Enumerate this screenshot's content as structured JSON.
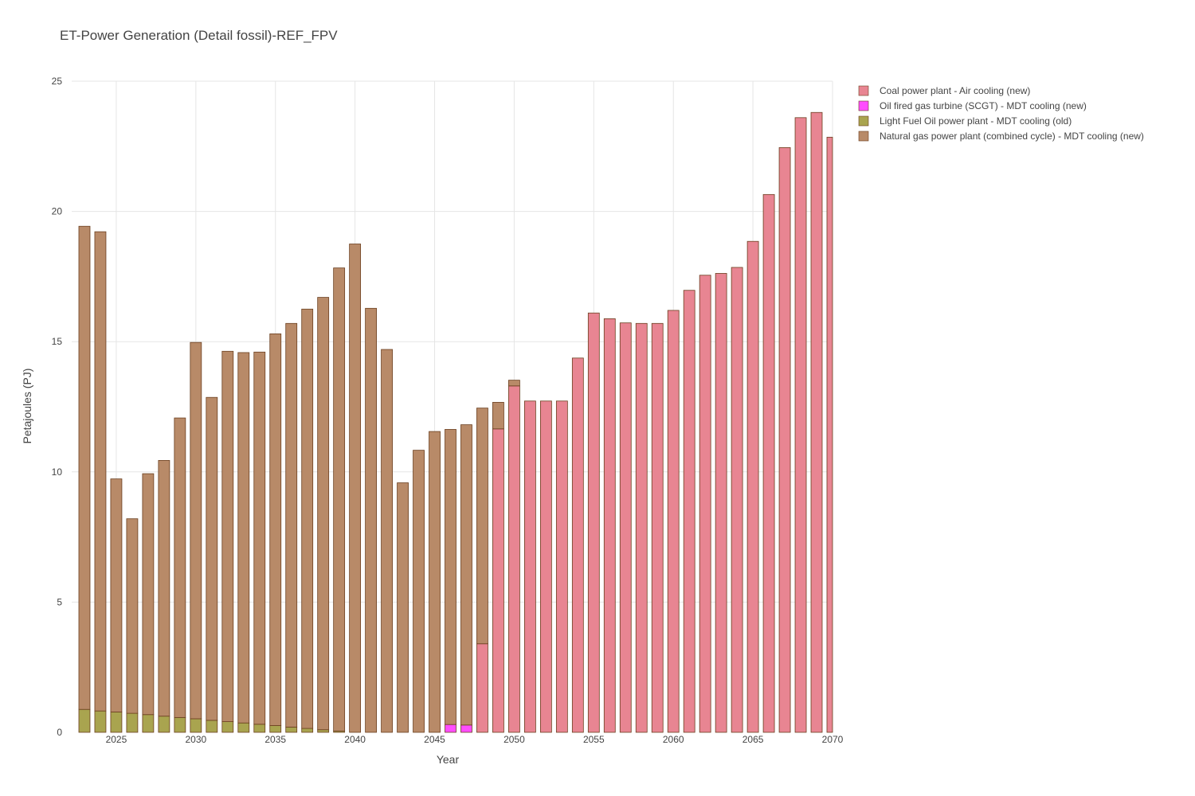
{
  "chart_data": {
    "type": "bar",
    "stacked": true,
    "title": "ET-Power Generation (Detail fossil)-REF_FPV",
    "xlabel": "Year",
    "ylabel": "Petajoules (PJ)",
    "xlim": [
      2022.2,
      2070
    ],
    "ylim": [
      0,
      25
    ],
    "xticks": [
      2025,
      2030,
      2035,
      2040,
      2045,
      2050,
      2055,
      2060,
      2065,
      2070
    ],
    "yticks": [
      0,
      5,
      10,
      15,
      20,
      25
    ],
    "grid": true,
    "legend_position": "top-right",
    "x": [
      2023,
      2024,
      2025,
      2026,
      2027,
      2028,
      2029,
      2030,
      2031,
      2032,
      2033,
      2034,
      2035,
      2036,
      2037,
      2038,
      2039,
      2040,
      2041,
      2042,
      2043,
      2044,
      2045,
      2046,
      2047,
      2048,
      2049,
      2050,
      2051,
      2052,
      2053,
      2054,
      2055,
      2056,
      2057,
      2058,
      2059,
      2060,
      2061,
      2062,
      2063,
      2064,
      2065,
      2066,
      2067,
      2068,
      2069,
      2070
    ],
    "series": [
      {
        "name": "Coal power plant - Air cooling (new)",
        "color": "#e88592",
        "values": [
          0,
          0,
          0,
          0,
          0,
          0,
          0,
          0,
          0,
          0,
          0,
          0,
          0,
          0,
          0,
          0,
          0,
          0,
          0,
          0,
          0,
          0,
          0,
          0,
          0,
          3.4,
          11.65,
          13.3,
          12.72,
          12.72,
          12.72,
          14.37,
          16.1,
          15.88,
          15.72,
          15.7,
          15.7,
          16.2,
          16.97,
          17.55,
          17.62,
          17.85,
          18.85,
          20.65,
          22.45,
          23.6,
          23.8,
          22.85
        ]
      },
      {
        "name": "Oil fired gas turbine (SCGT) - MDT cooling (new)",
        "color": "#ff4dff",
        "values": [
          0,
          0,
          0,
          0,
          0,
          0,
          0,
          0,
          0,
          0,
          0,
          0,
          0,
          0,
          0,
          0,
          0,
          0,
          0,
          0,
          0,
          0,
          0,
          0.3,
          0.28,
          0,
          0,
          0,
          0,
          0,
          0,
          0,
          0,
          0,
          0,
          0,
          0,
          0,
          0,
          0,
          0,
          0,
          0,
          0,
          0,
          0,
          0,
          0
        ]
      },
      {
        "name": "Light Fuel Oil power plant - MDT cooling (old)",
        "color": "#a9a44f",
        "values": [
          0.88,
          0.82,
          0.78,
          0.73,
          0.68,
          0.62,
          0.57,
          0.52,
          0.46,
          0.41,
          0.36,
          0.31,
          0.26,
          0.2,
          0.15,
          0.1,
          0.05,
          0,
          0,
          0,
          0,
          0,
          0,
          0,
          0,
          0,
          0,
          0,
          0,
          0,
          0,
          0,
          0,
          0,
          0,
          0,
          0,
          0,
          0,
          0,
          0,
          0,
          0,
          0,
          0,
          0,
          0,
          0
        ]
      },
      {
        "name": "Natural gas power plant (combined cycle) - MDT cooling (new)",
        "color": "#b88a68",
        "values": [
          18.55,
          18.4,
          8.95,
          7.47,
          9.25,
          9.82,
          11.5,
          14.45,
          12.4,
          14.22,
          14.22,
          14.29,
          15.04,
          15.5,
          16.1,
          16.6,
          17.78,
          18.75,
          16.28,
          14.7,
          9.58,
          10.83,
          11.55,
          11.33,
          11.53,
          9.05,
          1.02,
          0.22,
          0,
          0,
          0,
          0,
          0,
          0,
          0,
          0,
          0,
          0,
          0,
          0,
          0,
          0,
          0,
          0,
          0,
          0,
          0,
          0
        ]
      }
    ]
  }
}
